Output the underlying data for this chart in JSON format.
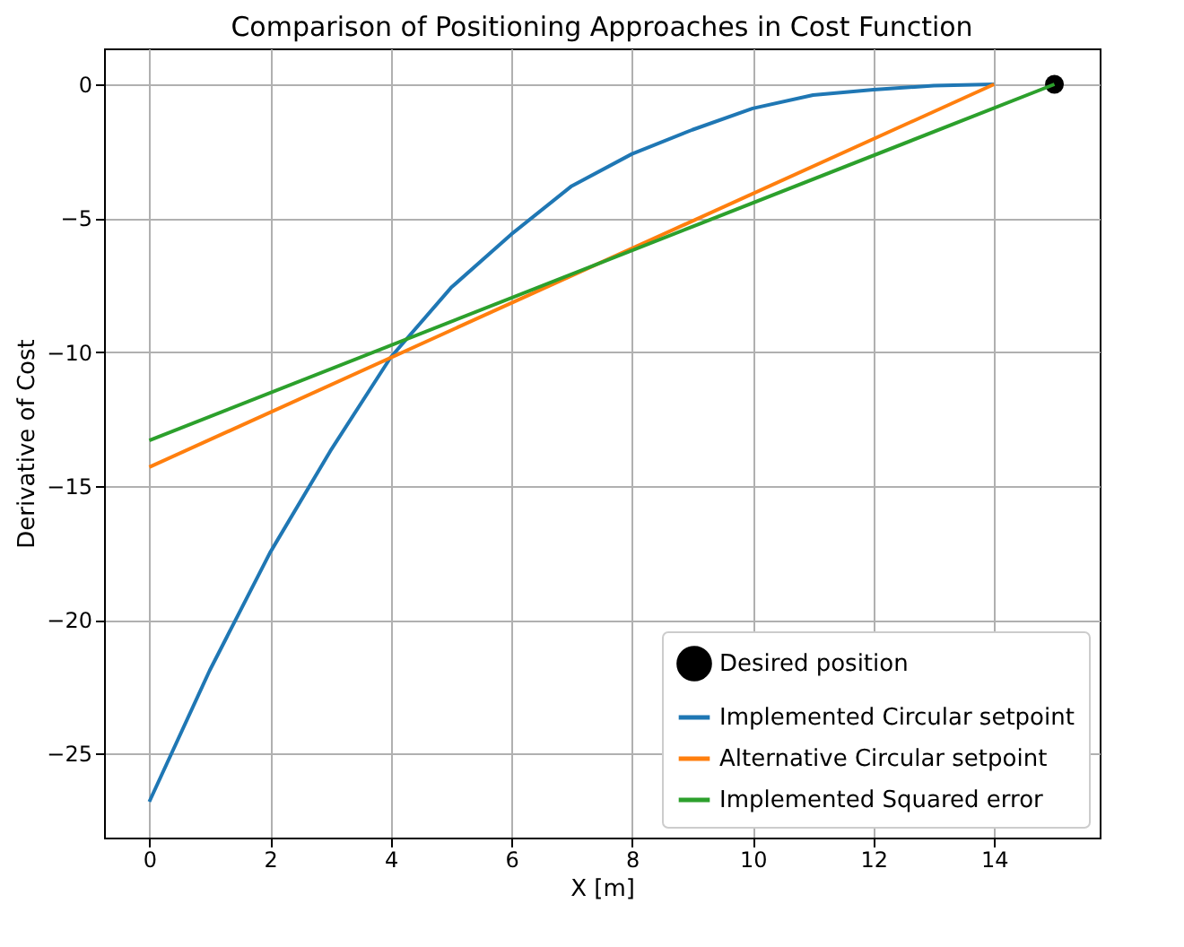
{
  "chart_data": {
    "type": "line",
    "title": "Comparison of Positioning Approaches in Cost Function",
    "xlabel": "X [m]",
    "ylabel": "Derivative of Cost",
    "series": [
      {
        "name": "Desired position",
        "type": "scatter",
        "color": "#000000",
        "x": [
          15
        ],
        "values": [
          0
        ]
      },
      {
        "name": "Implemented Circular setpoint",
        "color": "#1f77b4",
        "x": [
          0,
          1,
          2,
          3,
          4,
          5,
          6,
          7,
          8,
          9,
          10,
          11,
          12,
          13,
          14
        ],
        "values": [
          -26.8,
          -21.9,
          -17.5,
          -13.7,
          -10.2,
          -7.6,
          -5.6,
          -3.8,
          -2.6,
          -1.7,
          -0.9,
          -0.4,
          -0.2,
          -0.05,
          0
        ]
      },
      {
        "name": "Alternative Circular setpoint",
        "color": "#ff7f0e",
        "x": [
          0,
          14
        ],
        "values": [
          -14.3,
          0
        ]
      },
      {
        "name": "Implemented Squared error",
        "color": "#2ca02c",
        "x": [
          0,
          15
        ],
        "values": [
          -13.3,
          0
        ]
      }
    ],
    "xlim": [
      -0.75,
      15.75
    ],
    "xticks": [
      0,
      2,
      4,
      6,
      8,
      10,
      12,
      14
    ],
    "ylim": [
      -28.14,
      1.34
    ],
    "yticks": [
      -25,
      -20,
      -15,
      -10,
      -5,
      0
    ],
    "grid": true,
    "legend": "bottom right"
  }
}
